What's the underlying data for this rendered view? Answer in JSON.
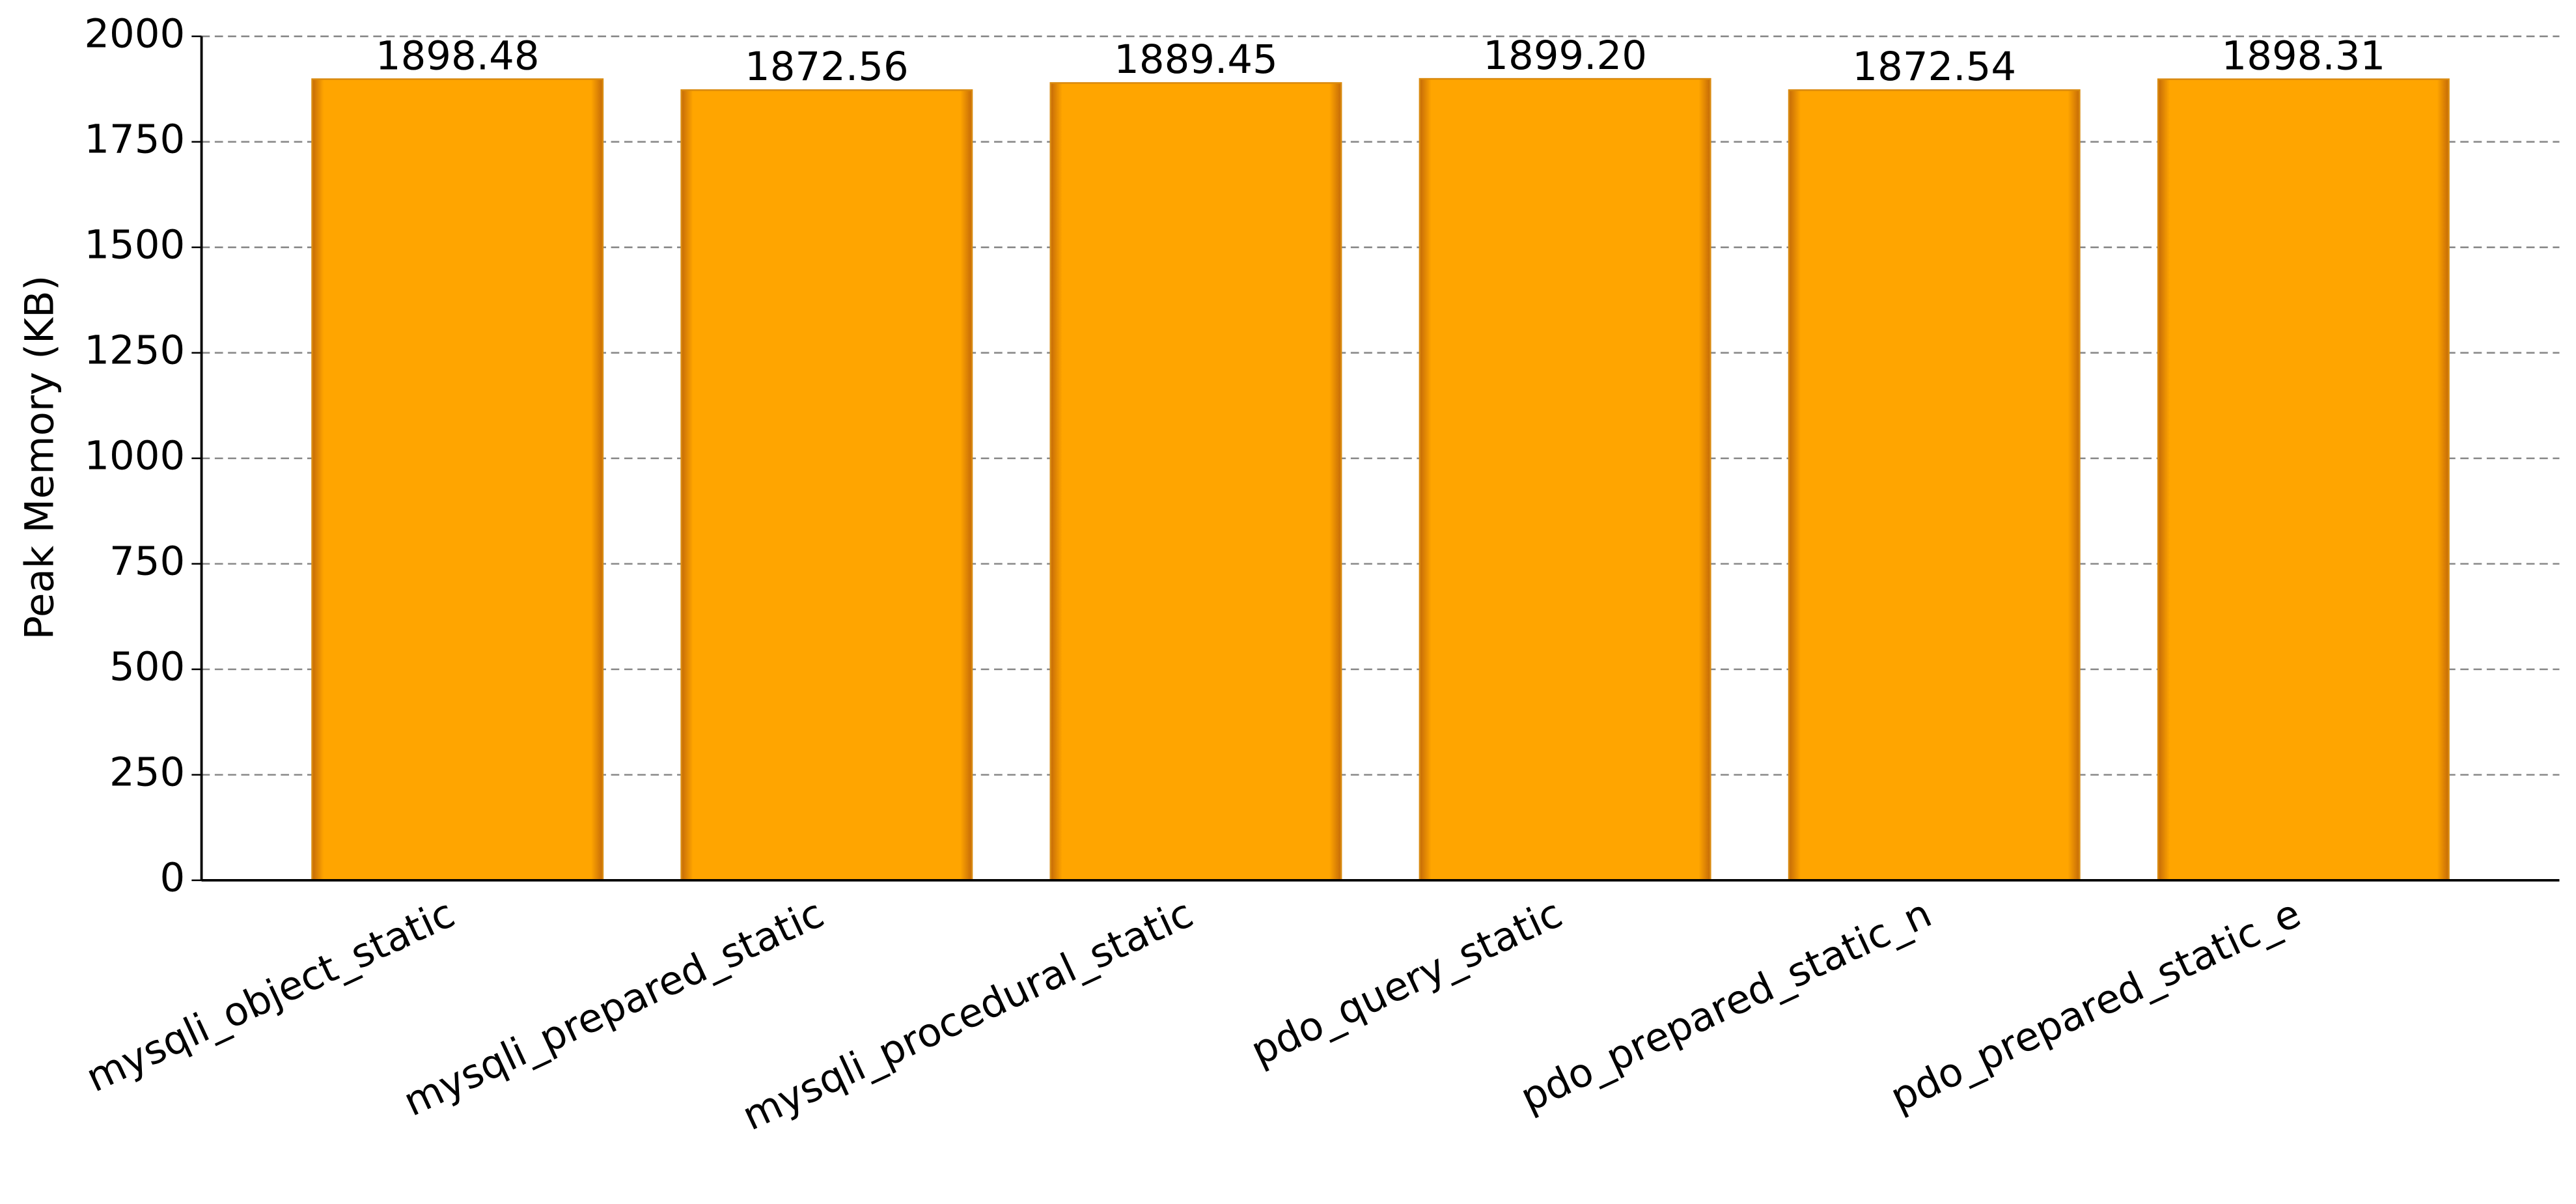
{
  "chart_data": {
    "type": "bar",
    "y_label": "Peak Memory (KB)",
    "categories": [
      "mysqli_object_static",
      "mysqli_prepared_static",
      "mysqli_procedural_static",
      "pdo_query_static",
      "pdo_prepared_static_n",
      "pdo_prepared_static_e"
    ],
    "values": [
      1898.48,
      1872.56,
      1889.45,
      1899.2,
      1872.54,
      1898.31
    ],
    "value_labels": [
      "1898.48",
      "1872.56",
      "1889.45",
      "1899.20",
      "1872.54",
      "1898.31"
    ],
    "color": "#ffa500",
    "ylim": [
      0,
      2000
    ],
    "yticks": [
      0,
      250,
      500,
      750,
      1000,
      1250,
      1500,
      1750,
      2000
    ],
    "grid": true
  }
}
